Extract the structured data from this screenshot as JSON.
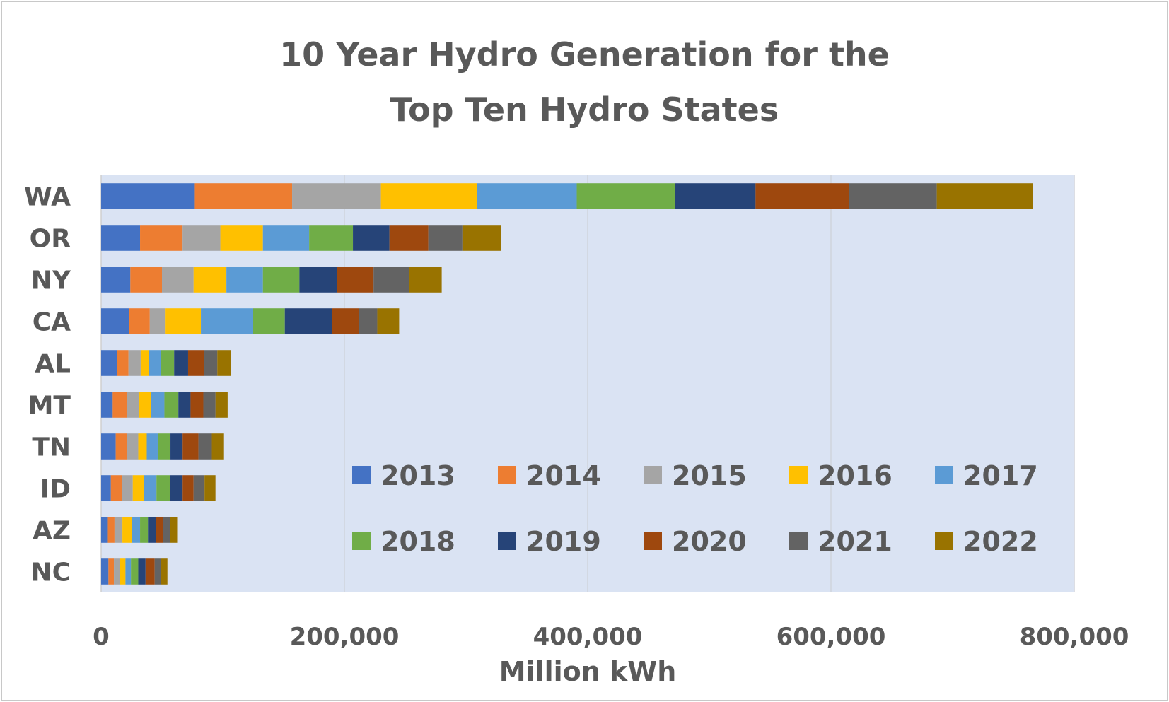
{
  "chart_data": {
    "type": "bar",
    "orientation": "horizontal",
    "stacked": true,
    "title": [
      "10 Year Hydro Generation for the",
      "Top Ten Hydro States"
    ],
    "xlabel": "Million kWh",
    "ylabel": "",
    "xlim": [
      0,
      800000
    ],
    "x_ticks": [
      0,
      200000,
      400000,
      600000,
      800000
    ],
    "x_tick_labels": [
      "0",
      "200,000",
      "400,000",
      "600,000",
      "800,000"
    ],
    "grid": true,
    "legend_position": "bottom-right inside plot",
    "plot_background": "#dae3f3",
    "categories": [
      "WA",
      "OR",
      "NY",
      "CA",
      "AL",
      "MT",
      "TN",
      "ID",
      "AZ",
      "NC"
    ],
    "series": [
      {
        "name": "2013",
        "color": "#4472c4",
        "values": [
          77000,
          32000,
          24000,
          23000,
          13000,
          9500,
          12000,
          8000,
          5500,
          6000
        ]
      },
      {
        "name": "2014",
        "color": "#ed7d31",
        "values": [
          80000,
          35000,
          26000,
          17000,
          9500,
          11500,
          9000,
          9000,
          5500,
          4500
        ]
      },
      {
        "name": "2015",
        "color": "#a5a5a5",
        "values": [
          73000,
          31000,
          26000,
          13000,
          10000,
          10000,
          9500,
          9000,
          6500,
          5000
        ]
      },
      {
        "name": "2016",
        "color": "#ffc000",
        "values": [
          79000,
          35000,
          27000,
          29000,
          7000,
          10000,
          7000,
          9000,
          7500,
          4500
        ]
      },
      {
        "name": "2017",
        "color": "#5b9bd5",
        "values": [
          82000,
          38000,
          30000,
          43000,
          9500,
          11000,
          9000,
          10500,
          7000,
          4500
        ]
      },
      {
        "name": "2018",
        "color": "#70ad47",
        "values": [
          81000,
          36000,
          30000,
          26000,
          11000,
          11500,
          10500,
          11000,
          6500,
          6000
        ]
      },
      {
        "name": "2019",
        "color": "#264478",
        "values": [
          66000,
          30000,
          31000,
          39000,
          11500,
          10000,
          10000,
          10500,
          6500,
          6000
        ]
      },
      {
        "name": "2020",
        "color": "#9e480e",
        "values": [
          77000,
          32000,
          30000,
          22000,
          13000,
          10500,
          13000,
          9000,
          6000,
          7500
        ]
      },
      {
        "name": "2021",
        "color": "#636363",
        "values": [
          72000,
          28000,
          29000,
          15000,
          11000,
          10000,
          11000,
          9000,
          5500,
          5000
        ]
      },
      {
        "name": "2022",
        "color": "#997300",
        "values": [
          79000,
          32000,
          27000,
          18000,
          11000,
          10000,
          10000,
          9000,
          6000,
          5500
        ]
      }
    ]
  }
}
